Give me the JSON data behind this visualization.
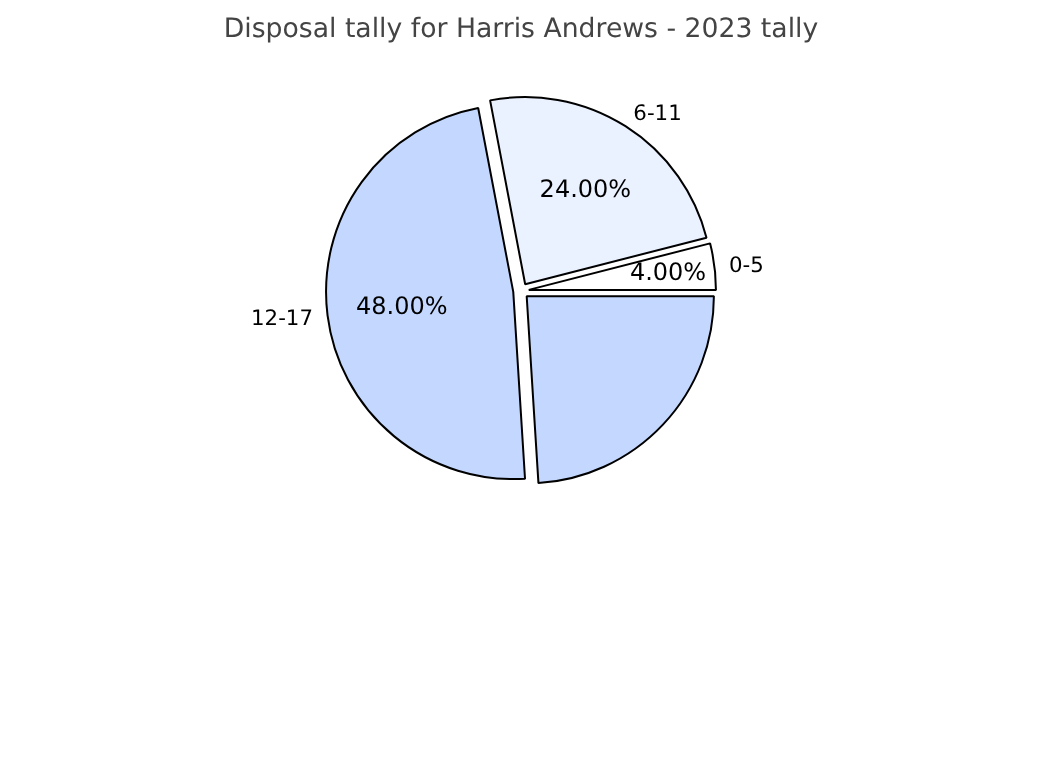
{
  "chart_data": {
    "type": "pie",
    "title": "Disposal tally for Harris Andrews - 2023 tally",
    "categories": [
      "0-5",
      "6-11",
      "12-17",
      null
    ],
    "values": [
      4,
      24,
      48,
      24
    ],
    "colors": [
      "#ffffff",
      "#eaf1ff",
      "#c4d8ff",
      "#c4d8ff"
    ],
    "value_labels": [
      "4.00%",
      "24.00%",
      "48.00%",
      null
    ]
  }
}
